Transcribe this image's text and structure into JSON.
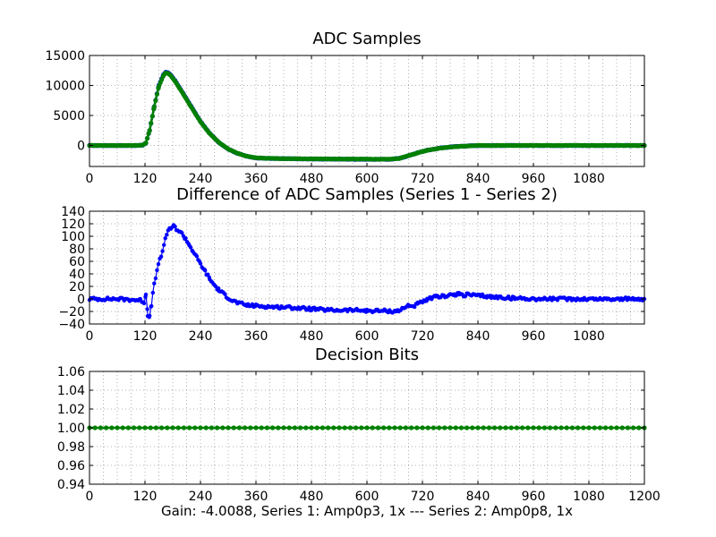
{
  "figure": {
    "xlabel": "Gain: -4.0088, Series 1: Amp0p3, 1x --- Series 2: Amp0p8, 1x"
  },
  "chart_data": [
    {
      "type": "line",
      "title": "ADC Samples",
      "xlabel": "",
      "ylabel": "",
      "xlim": [
        0,
        1200
      ],
      "ylim": [
        -3500,
        15000
      ],
      "xticks": [
        0,
        120,
        240,
        360,
        480,
        600,
        720,
        840,
        960,
        1080
      ],
      "xtick_labels": [
        "0",
        "120",
        "240",
        "360",
        "480",
        "600",
        "720",
        "840",
        "960",
        "1080"
      ],
      "yticks": [
        0,
        5000,
        10000,
        15000
      ],
      "ytick_labels": [
        "0",
        "5000",
        "10000",
        "15000"
      ],
      "grid": true,
      "series": [
        {
          "name": "Series 1",
          "color": "#0000ff",
          "x": [
            0,
            100,
            115,
            122,
            130,
            140,
            150,
            160,
            165,
            170,
            175,
            185,
            200,
            220,
            240,
            260,
            280,
            300,
            320,
            340,
            360,
            380,
            420,
            480,
            540,
            600,
            650,
            670,
            690,
            710,
            730,
            760,
            790,
            820,
            840,
            880,
            960,
            1080,
            1200
          ],
          "y": [
            0,
            0,
            50,
            400,
            2500,
            6500,
            10000,
            11800,
            12200,
            12150,
            11800,
            10800,
            9000,
            6500,
            4000,
            2000,
            500,
            -600,
            -1300,
            -1800,
            -2050,
            -2150,
            -2200,
            -2250,
            -2280,
            -2300,
            -2300,
            -2150,
            -1700,
            -1200,
            -800,
            -400,
            -180,
            -60,
            0,
            0,
            0,
            0,
            0
          ]
        },
        {
          "name": "Series 2",
          "color": "#008000",
          "x": [
            0,
            100,
            115,
            122,
            130,
            140,
            150,
            160,
            165,
            170,
            175,
            185,
            200,
            220,
            240,
            260,
            280,
            300,
            320,
            340,
            360,
            380,
            420,
            480,
            540,
            600,
            650,
            670,
            690,
            710,
            730,
            760,
            790,
            820,
            840,
            880,
            960,
            1080,
            1200
          ],
          "y": [
            0,
            0,
            50,
            420,
            2550,
            6450,
            9900,
            11700,
            12100,
            12050,
            11700,
            10700,
            8900,
            6400,
            3950,
            1980,
            500,
            -590,
            -1290,
            -1790,
            -2040,
            -2140,
            -2190,
            -2230,
            -2260,
            -2280,
            -2280,
            -2140,
            -1700,
            -1210,
            -810,
            -410,
            -190,
            -70,
            0,
            0,
            0,
            0,
            0
          ]
        }
      ]
    },
    {
      "type": "line",
      "title": "Difference of ADC Samples (Series 1 - Series 2)",
      "xlabel": "",
      "ylabel": "",
      "xlim": [
        0,
        1200
      ],
      "ylim": [
        -40,
        140
      ],
      "xticks": [
        0,
        120,
        240,
        360,
        480,
        600,
        720,
        840,
        960,
        1080
      ],
      "xtick_labels": [
        "0",
        "120",
        "240",
        "360",
        "480",
        "600",
        "720",
        "840",
        "960",
        "1080"
      ],
      "yticks": [
        -40,
        -20,
        0,
        20,
        40,
        60,
        80,
        100,
        120,
        140
      ],
      "ytick_labels": [
        "−40",
        "−20",
        "0",
        "20",
        "40",
        "60",
        "80",
        "100",
        "120",
        "140"
      ],
      "grid": true,
      "series": [
        {
          "name": "Difference",
          "color": "#0000ff",
          "x": [
            0,
            60,
            110,
            118,
            122,
            126,
            130,
            134,
            140,
            146,
            152,
            158,
            164,
            170,
            176,
            182,
            188,
            194,
            200,
            208,
            216,
            224,
            232,
            240,
            250,
            260,
            270,
            280,
            290,
            300,
            310,
            320,
            330,
            340,
            360,
            380,
            400,
            420,
            440,
            460,
            480,
            500,
            520,
            540,
            560,
            580,
            600,
            620,
            640,
            660,
            670,
            680,
            690,
            700,
            710,
            720,
            730,
            740,
            750,
            760,
            770,
            780,
            790,
            800,
            810,
            820,
            830,
            840,
            850,
            860,
            870,
            880,
            900,
            920,
            940,
            960,
            1000,
            1040,
            1080,
            1120,
            1160,
            1200
          ],
          "y": [
            0,
            0,
            -2,
            -5,
            8,
            -25,
            -28,
            -10,
            25,
            45,
            62,
            75,
            98,
            108,
            113,
            116,
            112,
            108,
            104,
            96,
            86,
            76,
            66,
            56,
            44,
            32,
            22,
            14,
            8,
            2,
            -3,
            -6,
            -8,
            -10,
            -11,
            -12,
            -13,
            -13,
            -14,
            -15,
            -16,
            -17,
            -18,
            -18,
            -18,
            -18,
            -19,
            -19,
            -19,
            -20,
            -18,
            -15,
            -10,
            -12,
            -8,
            -5,
            -2,
            2,
            3,
            4,
            5,
            7,
            6,
            8,
            6,
            7,
            6,
            5,
            5,
            4,
            3,
            3,
            2,
            1,
            1,
            0,
            0,
            0,
            0,
            0,
            0,
            0
          ]
        }
      ]
    },
    {
      "type": "line",
      "title": "Decision Bits",
      "xlabel": "Gain: -4.0088, Series 1: Amp0p3, 1x --- Series 2: Amp0p8, 1x",
      "ylabel": "",
      "xlim": [
        0,
        1200
      ],
      "ylim": [
        0.94,
        1.06
      ],
      "xticks": [
        0,
        120,
        240,
        360,
        480,
        600,
        720,
        840,
        960,
        1080,
        1200
      ],
      "xtick_labels": [
        "0",
        "120",
        "240",
        "360",
        "480",
        "600",
        "720",
        "840",
        "960",
        "1080",
        "1200"
      ],
      "yticks": [
        0.94,
        0.96,
        0.98,
        1.0,
        1.02,
        1.04,
        1.06
      ],
      "ytick_labels": [
        "0.94",
        "0.96",
        "0.98",
        "1.00",
        "1.02",
        "1.04",
        "1.06"
      ],
      "grid": true,
      "series": [
        {
          "name": "Decision",
          "color": "#008000",
          "x": [
            0,
            1200
          ],
          "y": [
            1.0,
            1.0
          ]
        }
      ]
    }
  ]
}
